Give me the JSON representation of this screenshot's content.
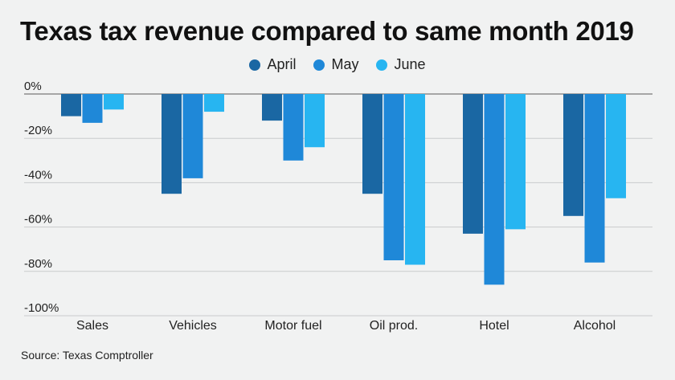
{
  "chart_data": {
    "type": "bar",
    "title": "Texas tax revenue compared to same month 2019",
    "categories": [
      "Sales",
      "Vehicles",
      "Motor fuel",
      "Oil prod.",
      "Hotel",
      "Alcohol"
    ],
    "series": [
      {
        "name": "April",
        "color": "#1a67a3",
        "values": [
          -10,
          -45,
          -12,
          -45,
          -63,
          -55
        ]
      },
      {
        "name": "May",
        "color": "#1f88d8",
        "values": [
          -13,
          -38,
          -30,
          -75,
          -86,
          -76
        ]
      },
      {
        "name": "June",
        "color": "#27b5f1",
        "values": [
          -7,
          -8,
          -24,
          -77,
          -61,
          -47
        ]
      }
    ],
    "yticks": [
      0,
      -20,
      -40,
      -60,
      -80,
      -100
    ],
    "ytick_labels": [
      "0%",
      "-20%",
      "-40%",
      "-60%",
      "-80%",
      "-100%"
    ],
    "ylim": [
      -100,
      0
    ],
    "grid": true,
    "legend_position": "top-center",
    "source": "Source: Texas Comptroller"
  }
}
